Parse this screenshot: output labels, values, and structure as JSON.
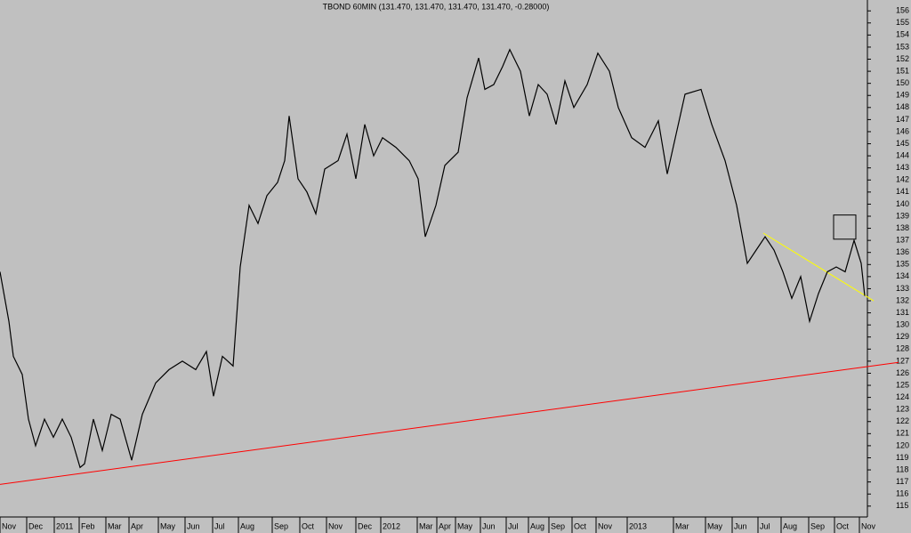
{
  "chart_data": {
    "type": "line",
    "title": "TBOND 60MIN (131.470, 131.470, 131.470, 131.470, -0.28000)",
    "background": "#c0c0c0",
    "x": [
      0,
      10,
      15,
      25,
      32,
      40,
      50,
      60,
      70,
      80,
      90,
      95,
      105,
      115,
      125,
      135,
      148,
      160,
      175,
      190,
      205,
      220,
      232,
      240,
      250,
      262,
      270,
      280,
      290,
      300,
      312,
      320,
      325,
      335,
      345,
      355,
      365,
      380,
      390,
      400,
      410,
      420,
      430,
      445,
      460,
      470,
      478,
      490,
      500,
      515,
      525,
      538,
      545,
      555,
      565,
      573,
      585,
      595,
      605,
      615,
      625,
      635,
      645,
      660,
      672,
      685,
      695,
      710,
      725,
      740,
      750,
      760,
      770,
      788,
      800,
      815,
      828,
      840,
      850,
      860,
      870,
      880,
      890,
      900,
      910,
      920,
      930,
      940,
      950,
      960,
      968,
      972
    ],
    "series": [
      {
        "name": "TBOND",
        "color": "#000000",
        "values": [
          134.4,
          130.3,
          127.4,
          125.9,
          122.2,
          120.0,
          122.2,
          120.7,
          122.2,
          120.7,
          118.2,
          118.5,
          122.2,
          119.6,
          122.6,
          122.2,
          118.8,
          122.6,
          125.2,
          126.3,
          127.0,
          126.3,
          127.8,
          124.1,
          127.4,
          126.6,
          134.8,
          139.9,
          138.4,
          140.7,
          141.8,
          143.6,
          147.3,
          142.1,
          141.0,
          139.2,
          142.9,
          143.6,
          145.8,
          142.1,
          146.6,
          144.0,
          145.5,
          144.7,
          143.6,
          142.1,
          137.3,
          139.9,
          143.2,
          144.3,
          148.8,
          152.1,
          149.5,
          149.9,
          151.4,
          152.8,
          151.0,
          147.3,
          149.9,
          149.1,
          146.6,
          150.2,
          148.0,
          149.9,
          152.5,
          151.0,
          148.0,
          145.5,
          144.7,
          146.9,
          142.5,
          145.8,
          149.1,
          149.5,
          146.6,
          143.6,
          139.9,
          135.1,
          136.2,
          137.3,
          136.2,
          134.4,
          132.2,
          134.0,
          130.3,
          132.6,
          134.4,
          134.8,
          134.4,
          137.0,
          135.1,
          132.4
        ]
      }
    ],
    "trendlines": [
      {
        "color": "#ff0000",
        "x": [
          0,
          1010
        ],
        "y": [
          116.8,
          126.9
        ]
      },
      {
        "color": "#ffff00",
        "x": [
          858,
          982
        ],
        "y": [
          137.6,
          132.0
        ]
      }
    ],
    "box": {
      "x": [
        937,
        962
      ],
      "y": [
        139.1,
        137.1
      ]
    },
    "xlim": [
      0,
      975
    ],
    "xticks": [
      {
        "value": 0,
        "label": "Nov"
      },
      {
        "value": 30,
        "label": "Dec"
      },
      {
        "value": 61,
        "label": "2011"
      },
      {
        "value": 89,
        "label": "Feb"
      },
      {
        "value": 119,
        "label": "Mar"
      },
      {
        "value": 145,
        "label": "Apr"
      },
      {
        "value": 178,
        "label": "May"
      },
      {
        "value": 208,
        "label": "Jun"
      },
      {
        "value": 239,
        "label": "Jul"
      },
      {
        "value": 268,
        "label": "Aug"
      },
      {
        "value": 306,
        "label": "Sep"
      },
      {
        "value": 337,
        "label": "Oct"
      },
      {
        "value": 367,
        "label": "Nov"
      },
      {
        "value": 400,
        "label": "Dec"
      },
      {
        "value": 428,
        "label": "2012"
      },
      {
        "value": 469,
        "label": "Mar"
      },
      {
        "value": 491,
        "label": "Apr"
      },
      {
        "value": 512,
        "label": "May"
      },
      {
        "value": 540,
        "label": "Jun"
      },
      {
        "value": 569,
        "label": "Jul"
      },
      {
        "value": 594,
        "label": "Aug"
      },
      {
        "value": 617,
        "label": "Sep"
      },
      {
        "value": 643,
        "label": "Oct"
      },
      {
        "value": 670,
        "label": "Nov"
      },
      {
        "value": 705,
        "label": "2013"
      },
      {
        "value": 757,
        "label": "Mar"
      },
      {
        "value": 793,
        "label": "May"
      },
      {
        "value": 823,
        "label": "Jun"
      },
      {
        "value": 852,
        "label": "Jul"
      },
      {
        "value": 878,
        "label": "Aug"
      },
      {
        "value": 909,
        "label": "Sep"
      },
      {
        "value": 938,
        "label": "Oct"
      },
      {
        "value": 966,
        "label": "Nov"
      }
    ],
    "ylim": [
      114.1,
      156.9
    ],
    "yticks": [
      115,
      116,
      117,
      118,
      119,
      120,
      121,
      122,
      123,
      124,
      125,
      126,
      127,
      128,
      129,
      130,
      131,
      132,
      133,
      134,
      135,
      136,
      137,
      138,
      139,
      140,
      141,
      142,
      143,
      144,
      145,
      146,
      147,
      148,
      149,
      150,
      151,
      152,
      153,
      154,
      155,
      156
    ]
  }
}
